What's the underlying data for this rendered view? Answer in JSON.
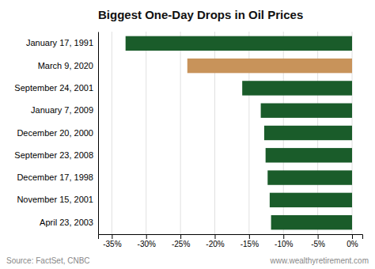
{
  "chart_data": {
    "type": "bar",
    "orientation": "horizontal",
    "title": "Biggest One-Day Drops in Oil Prices",
    "categories": [
      "April 23, 2003",
      "November 15, 2001",
      "December 17, 1998",
      "September 23, 2008",
      "December 20, 2000",
      "January 7, 2009",
      "September 24, 2001",
      "March 9, 2020",
      "January 17, 1991"
    ],
    "values": [
      -11.8,
      -12.0,
      -12.3,
      -12.6,
      -12.8,
      -13.3,
      -16.0,
      -24.0,
      -33.0
    ],
    "colors": [
      "#1a5c2a",
      "#1a5c2a",
      "#1a5c2a",
      "#1a5c2a",
      "#1a5c2a",
      "#1a5c2a",
      "#1a5c2a",
      "#c8935a",
      "#1a5c2a"
    ],
    "xlim": [
      -37,
      1.5
    ],
    "xticks": [
      {
        "value": -35,
        "label": "-35%"
      },
      {
        "value": -30,
        "label": "-30%"
      },
      {
        "value": -25,
        "label": "-25%"
      },
      {
        "value": -20,
        "label": "-20%"
      },
      {
        "value": -15,
        "label": "-15%"
      },
      {
        "value": -10,
        "label": "-10%"
      },
      {
        "value": -5,
        "label": "-5%"
      },
      {
        "value": 0,
        "label": "0%"
      }
    ],
    "grid": true,
    "annotations": [
      "Source: FactSet, CNBC",
      "www.wealthyretirement.com"
    ]
  }
}
